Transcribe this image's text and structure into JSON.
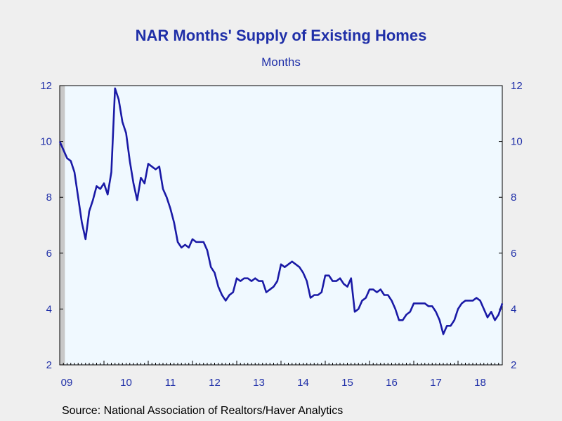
{
  "chart_data": {
    "type": "line",
    "title": "NAR Months' Supply of Existing Homes",
    "subtitle": "Months",
    "source": "Source:  National Association of Realtors/Haver Analytics",
    "ylim": [
      2,
      12
    ],
    "yticks": [
      "2",
      "4",
      "6",
      "8",
      "10",
      "12"
    ],
    "y_axes": [
      "left",
      "right"
    ],
    "xticks": [
      "09",
      "10",
      "11",
      "12",
      "13",
      "14",
      "15",
      "16",
      "17",
      "18"
    ],
    "x_start": "2009-01",
    "grid": false,
    "colors": {
      "line": "#1a1aa6",
      "axis": "#1f2fa8",
      "background": "#efefef",
      "plot_background": "#f0f9ff",
      "recession_shade": "#c8c8c8"
    },
    "shaded_period": [
      "2009-01",
      "2009-06"
    ],
    "series": [
      {
        "values": [
          10.0,
          9.7,
          9.4,
          9.3,
          8.9,
          8.0,
          7.1,
          6.5,
          7.5,
          7.9,
          8.4,
          8.3,
          8.5,
          8.1,
          8.9,
          11.9,
          11.5,
          10.7,
          10.3,
          9.3,
          8.5,
          7.9,
          8.7,
          8.5,
          9.2,
          9.1,
          9.0,
          9.1,
          8.3,
          8.0,
          7.6,
          7.1,
          6.4,
          6.2,
          6.3,
          6.2,
          6.5,
          6.4,
          6.4,
          6.4,
          6.1,
          5.5,
          5.3,
          4.8,
          4.5,
          4.3,
          4.5,
          4.6,
          5.1,
          5.0,
          5.1,
          5.1,
          5.0,
          5.1,
          5.0,
          5.0,
          4.6,
          4.7,
          4.8,
          5.0,
          5.6,
          5.5,
          5.6,
          5.7,
          5.6,
          5.5,
          5.3,
          5.0,
          4.4,
          4.5,
          4.5,
          4.6,
          5.2,
          5.2,
          5.0,
          5.0,
          5.1,
          4.9,
          4.8,
          5.1,
          3.9,
          4.0,
          4.3,
          4.4,
          4.7,
          4.7,
          4.6,
          4.7,
          4.5,
          4.5,
          4.3,
          4.0,
          3.6,
          3.6,
          3.8,
          3.9,
          4.2,
          4.2,
          4.2,
          4.2,
          4.1,
          4.1,
          3.9,
          3.6,
          3.1,
          3.4,
          3.4,
          3.6,
          4.0,
          4.2,
          4.3,
          4.3,
          4.3,
          4.4,
          4.3,
          4.0,
          3.7,
          3.9,
          3.6,
          3.8,
          4.2
        ]
      }
    ]
  }
}
